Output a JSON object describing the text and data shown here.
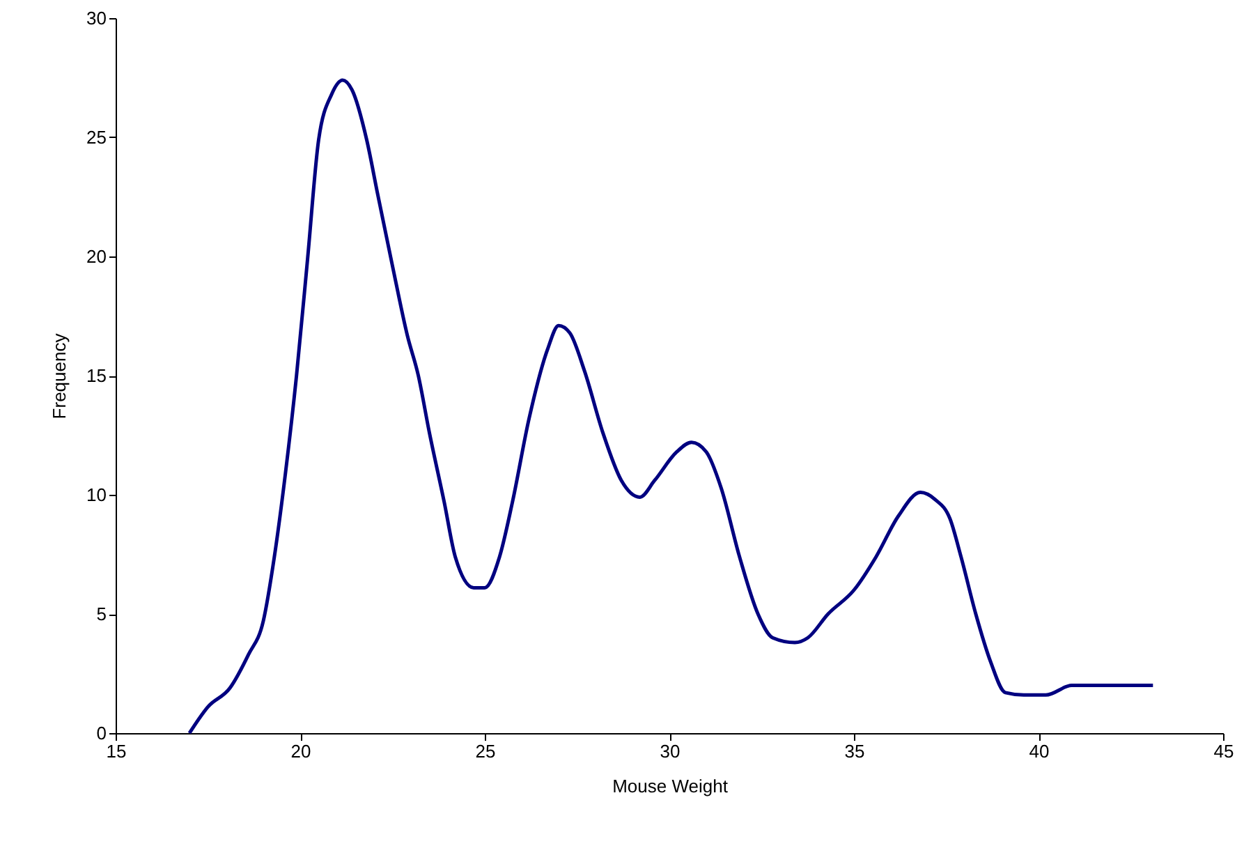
{
  "chart_data": {
    "type": "line",
    "xlabel": "Mouse Weight",
    "ylabel": "Frequency",
    "xlim": [
      15,
      45
    ],
    "xticks": [
      15,
      20,
      25,
      30,
      35,
      40,
      45
    ],
    "ylim": [
      0,
      30
    ],
    "yticks": [
      0,
      5,
      10,
      15,
      20,
      25,
      30
    ],
    "grid": false,
    "marker": "none",
    "line_style": "solid",
    "series": [
      {
        "color": "#000080",
        "x": [
          17.0,
          17.5,
          18.1,
          18.6,
          19.0,
          19.3,
          19.6,
          19.9,
          20.2,
          20.5,
          20.85,
          21.15,
          21.4,
          21.8,
          22.1,
          22.5,
          22.9,
          23.2,
          23.5,
          23.9,
          24.2,
          24.7,
          25.0,
          25.4,
          25.75,
          26.2,
          26.7,
          27.0,
          27.3,
          27.7,
          28.2,
          28.7,
          29.2,
          29.6,
          30.2,
          30.6,
          31.0,
          31.4,
          31.9,
          32.4,
          32.8,
          33.4,
          33.75,
          34.3,
          35.0,
          35.6,
          36.2,
          36.8,
          37.2,
          37.6,
          37.9,
          38.3,
          38.7,
          39.1,
          39.6,
          40.2,
          40.9,
          42.0,
          43.1
        ],
        "values": [
          0,
          1.1,
          1.9,
          3.3,
          4.7,
          7.4,
          10.9,
          15,
          19.9,
          24.9,
          26.8,
          27.4,
          27,
          24.9,
          22.6,
          19.6,
          16.7,
          15,
          12.6,
          9.7,
          7.4,
          6.1,
          6.1,
          7.4,
          9.7,
          13.2,
          16.1,
          17.1,
          16.8,
          15.2,
          12.6,
          10.6,
          9.9,
          10.6,
          11.8,
          12.2,
          11.8,
          10.3,
          7.4,
          5.0,
          4.0,
          3.8,
          4.0,
          5.0,
          6.0,
          7.4,
          9.1,
          10.1,
          9.8,
          9.0,
          7.4,
          5.0,
          3.0,
          1.7,
          1.6,
          1.6,
          2.0,
          2.0,
          2.0
        ]
      }
    ]
  }
}
